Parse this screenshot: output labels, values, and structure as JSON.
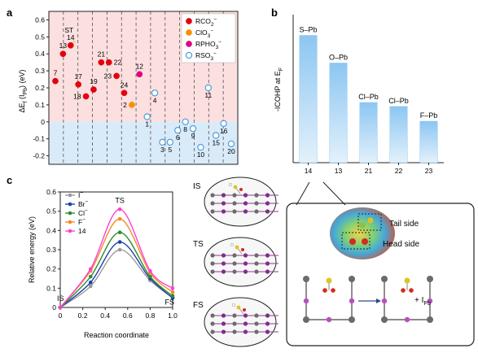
{
  "chart_data": [
    {
      "panel": "a",
      "type": "scatter",
      "ylabel": "ΔE",
      "ylabel_sub": "f",
      "ylabel_rest": " (I",
      "ylabel_sub2": "Pb",
      "ylabel_end": ") (eV)",
      "ylim": [
        -0.25,
        0.65
      ],
      "yticks": [
        "0.6",
        "0.5",
        "0.4",
        "0.3",
        "0.2",
        "0.1",
        "0",
        "-0.1",
        "-0.2"
      ],
      "ytick_values": [
        0.6,
        0.5,
        0.4,
        0.3,
        0.2,
        0.1,
        0,
        -0.1,
        -0.2
      ],
      "background": {
        "positive": "#f9c4c4",
        "negative": "#cfe6f7"
      },
      "legend": [
        {
          "label": "RCO",
          "sub": "2",
          "sup": "−",
          "color": "#e3000f",
          "filled": true
        },
        {
          "label": "ClO",
          "sub": "3",
          "sup": "−",
          "color": "#f39200",
          "filled": true
        },
        {
          "label": "RPHO",
          "sub": "3",
          "sup": "−",
          "color": "#e5007d",
          "filled": true
        },
        {
          "label": "RSO",
          "sub": "3",
          "sup": "−",
          "color": "#4d9fdc",
          "filled": false
        }
      ],
      "st_label": "ST",
      "points": [
        {
          "label": "7",
          "x": 1,
          "y": 0.24,
          "group": 0,
          "lpos": "above"
        },
        {
          "label": "13",
          "x": 2,
          "y": 0.4,
          "group": 0,
          "lpos": "above"
        },
        {
          "label": "14",
          "x": 3,
          "y": 0.45,
          "group": 0,
          "lpos": "above"
        },
        {
          "label": "17",
          "x": 4,
          "y": 0.22,
          "group": 0,
          "lpos": "above"
        },
        {
          "label": "18",
          "x": 5,
          "y": 0.15,
          "group": 0,
          "lpos": "left"
        },
        {
          "label": "19",
          "x": 6,
          "y": 0.19,
          "group": 0,
          "lpos": "above"
        },
        {
          "label": "21",
          "x": 7,
          "y": 0.35,
          "group": 0,
          "lpos": "above"
        },
        {
          "label": "22",
          "x": 8,
          "y": 0.35,
          "group": 0,
          "lpos": "right"
        },
        {
          "label": "23",
          "x": 9,
          "y": 0.27,
          "group": 0,
          "lpos": "left"
        },
        {
          "label": "24",
          "x": 10,
          "y": 0.17,
          "group": 0,
          "lpos": "above"
        },
        {
          "label": "2",
          "x": 11,
          "y": 0.1,
          "group": 1,
          "lpos": "left"
        },
        {
          "label": "12",
          "x": 12,
          "y": 0.28,
          "group": 2,
          "lpos": "above"
        },
        {
          "label": "1",
          "x": 13,
          "y": 0.03,
          "group": 3,
          "lpos": "below"
        },
        {
          "label": "4",
          "x": 14,
          "y": 0.17,
          "group": 3,
          "lpos": "below"
        },
        {
          "label": "3",
          "x": 15,
          "y": -0.12,
          "group": 3,
          "lpos": "below"
        },
        {
          "label": "5",
          "x": 16,
          "y": -0.12,
          "group": 3,
          "lpos": "below"
        },
        {
          "label": "6",
          "x": 17,
          "y": -0.05,
          "group": 3,
          "lpos": "below"
        },
        {
          "label": "8",
          "x": 18,
          "y": 0.0,
          "group": 3,
          "lpos": "below"
        },
        {
          "label": "9",
          "x": 19,
          "y": -0.04,
          "group": 3,
          "lpos": "below"
        },
        {
          "label": "10",
          "x": 20,
          "y": -0.15,
          "group": 3,
          "lpos": "below"
        },
        {
          "label": "11",
          "x": 21,
          "y": 0.2,
          "group": 3,
          "lpos": "below"
        },
        {
          "label": "15",
          "x": 22,
          "y": -0.08,
          "group": 3,
          "lpos": "below"
        },
        {
          "label": "16",
          "x": 23,
          "y": -0.01,
          "group": 3,
          "lpos": "below"
        },
        {
          "label": "20",
          "x": 24,
          "y": -0.13,
          "group": 3,
          "lpos": "below"
        }
      ]
    },
    {
      "panel": "b",
      "type": "bar",
      "ylabel": "-ICOHP at E",
      "ylabel_sub": "F",
      "categories": [
        "14",
        "13",
        "21",
        "22",
        "23"
      ],
      "values": [
        1.29,
        1.01,
        0.61,
        0.57,
        0.42
      ],
      "bar_labels": [
        "S–Pb",
        "O–Pb",
        "Cl–Pb",
        "Cl–Pb",
        "F–Pb"
      ],
      "ylim": [
        0,
        1.5
      ],
      "color_top": "#8cc6f2",
      "color_bottom": "#dcedfa"
    },
    {
      "panel": "c",
      "type": "line",
      "xlabel": "Reaction coordinate",
      "ylabel": "Relative energy (eV)",
      "xlim": [
        0,
        1.0
      ],
      "ylim": [
        0,
        0.6
      ],
      "xticks": [
        "0",
        "0.2",
        "0.4",
        "0.6",
        "0.8",
        "1.0"
      ],
      "xtick_values": [
        0,
        0.2,
        0.4,
        0.6,
        0.8,
        1.0
      ],
      "yticks": [
        "0",
        "0.1",
        "0.2",
        "0.3",
        "0.4",
        "0.5",
        "0.6"
      ],
      "ytick_values": [
        0,
        0.1,
        0.2,
        0.3,
        0.4,
        0.5,
        0.6
      ],
      "annotations": {
        "is": "IS",
        "ts": "TS",
        "fs": "FS"
      },
      "x": [
        0,
        0.27,
        0.53,
        0.8,
        1.0
      ],
      "series": [
        {
          "name": "I",
          "sup": "−",
          "color": "#9b9b9b",
          "values": [
            0,
            0.11,
            0.3,
            0.14,
            0.05
          ]
        },
        {
          "name": "Br",
          "sup": "−",
          "color": "#1f3fa8",
          "values": [
            0,
            0.13,
            0.34,
            0.15,
            0.05
          ]
        },
        {
          "name": "Cl",
          "sup": "−",
          "color": "#2e8b2e",
          "values": [
            0,
            0.16,
            0.39,
            0.16,
            0.06
          ]
        },
        {
          "name": "F",
          "sup": "−",
          "color": "#f28c28",
          "values": [
            0,
            0.19,
            0.46,
            0.18,
            0.08
          ]
        },
        {
          "name": "14",
          "sup": "",
          "color": "#ff3fd1",
          "values": [
            0,
            0.2,
            0.51,
            0.19,
            0.1
          ]
        }
      ]
    }
  ],
  "panel_letters": {
    "a": "a",
    "b": "b",
    "c": "c"
  },
  "structures": {
    "is": "IS",
    "ts": "TS",
    "fs": "FS"
  },
  "esp": {
    "tail": "Tail side",
    "head": "Head side",
    "product": "+ I",
    "product_sub": "Pb"
  }
}
